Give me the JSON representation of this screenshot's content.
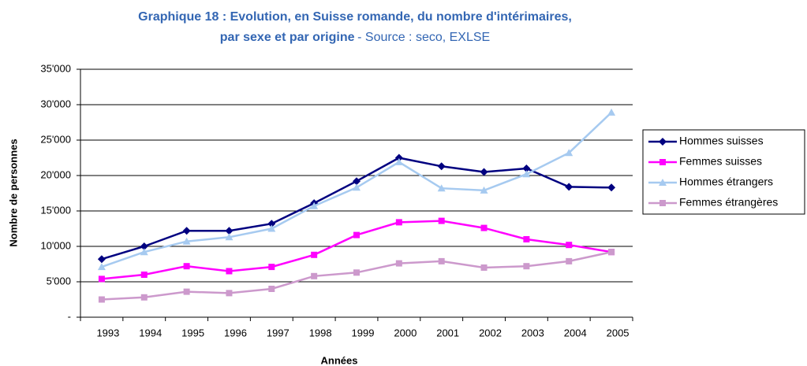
{
  "chart_data": {
    "type": "line",
    "title": [
      "Graphique 18 : Evolution, en Suisse romande, du nombre d'intérimaires,",
      "par sexe et par origine"
    ],
    "source": "- Source : seco, EXLSE",
    "x_label": "Années",
    "y_label": "Nombre de personnes",
    "categories": [
      "1993",
      "1994",
      "1995",
      "1996",
      "1997",
      "1998",
      "1999",
      "2000",
      "2001",
      "2002",
      "2003",
      "2004",
      "2005"
    ],
    "series": [
      {
        "name": "Hommes suisses",
        "color": "#000080",
        "marker": "diamond",
        "values": [
          8200,
          10000,
          12200,
          12200,
          13200,
          16100,
          19200,
          22500,
          21300,
          20500,
          21000,
          18400,
          18300
        ]
      },
      {
        "name": "Femmes suisses",
        "color": "#ff00ff",
        "marker": "square",
        "values": [
          5400,
          6000,
          7200,
          6500,
          7100,
          8800,
          11600,
          13400,
          13600,
          12600,
          11000,
          10200,
          9200
        ]
      },
      {
        "name": "Hommes étrangers",
        "color": "#a6caf0",
        "marker": "triangle",
        "values": [
          7100,
          9200,
          10700,
          11300,
          12500,
          15700,
          18300,
          21900,
          18200,
          17900,
          20200,
          23200,
          28900
        ]
      },
      {
        "name": "Femmes étrangères",
        "color": "#cc99cc",
        "marker": "square",
        "values": [
          2500,
          2800,
          3600,
          3400,
          4000,
          5800,
          6300,
          7600,
          7900,
          7000,
          7200,
          7900,
          9200
        ]
      }
    ],
    "ylim": [
      0,
      35000
    ],
    "yticks": [
      {
        "value": 0,
        "label": "-"
      },
      {
        "value": 5000,
        "label": "5'000"
      },
      {
        "value": 10000,
        "label": "10'000"
      },
      {
        "value": 15000,
        "label": "15'000"
      },
      {
        "value": 20000,
        "label": "20'000"
      },
      {
        "value": 25000,
        "label": "25'000"
      },
      {
        "value": 30000,
        "label": "30'000"
      },
      {
        "value": 35000,
        "label": "35'000"
      }
    ],
    "grid": true,
    "legend": "right"
  }
}
